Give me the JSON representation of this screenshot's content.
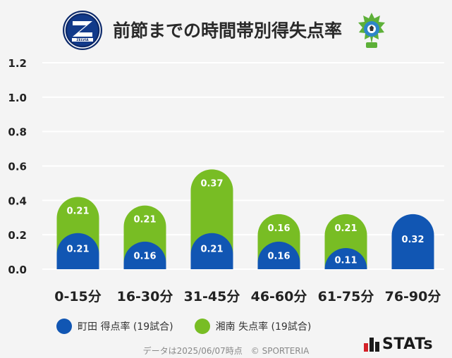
{
  "header": {
    "title": "前節までの時間帯別得失点率",
    "left_logo_text": "ZELVIA",
    "right_logo_icon": "bellmare-crest-icon"
  },
  "colors": {
    "background": "#f4f4f4",
    "machida_blue": "#1156b3",
    "shonan_green": "#78bd24",
    "grid": "#ffffff",
    "axis_text": "#222222"
  },
  "chart_data": {
    "type": "bar",
    "stacked": true,
    "categories": [
      "0-15分",
      "16-30分",
      "31-45分",
      "46-60分",
      "61-75分",
      "76-90分"
    ],
    "series": [
      {
        "name": "町田 得点率 (19試合)",
        "color": "#1156b3",
        "values": [
          0.21,
          0.16,
          0.21,
          0.16,
          0.11,
          0.32
        ]
      },
      {
        "name": "湘南 失点率 (19試合)",
        "color": "#78bd24",
        "values": [
          0.21,
          0.21,
          0.37,
          0.16,
          0.21,
          null
        ]
      }
    ],
    "ylim": [
      0,
      1.2
    ],
    "yticks": [
      "0.0",
      "0.2",
      "0.4",
      "0.6",
      "0.8",
      "1.0",
      "1.2"
    ],
    "grid": true,
    "legend": "bottom",
    "title": "前節までの時間帯別得失点率",
    "xlabel": "",
    "ylabel": ""
  },
  "legend": {
    "items": [
      {
        "label": "町田 得点率 (19試合)",
        "color": "#1156b3"
      },
      {
        "label": "湘南 失点率 (19試合)",
        "color": "#78bd24"
      }
    ]
  },
  "footer": {
    "source": "データは2025/06/07時点　© SPORTERIA"
  },
  "branding": {
    "stats_label": "STATs"
  }
}
